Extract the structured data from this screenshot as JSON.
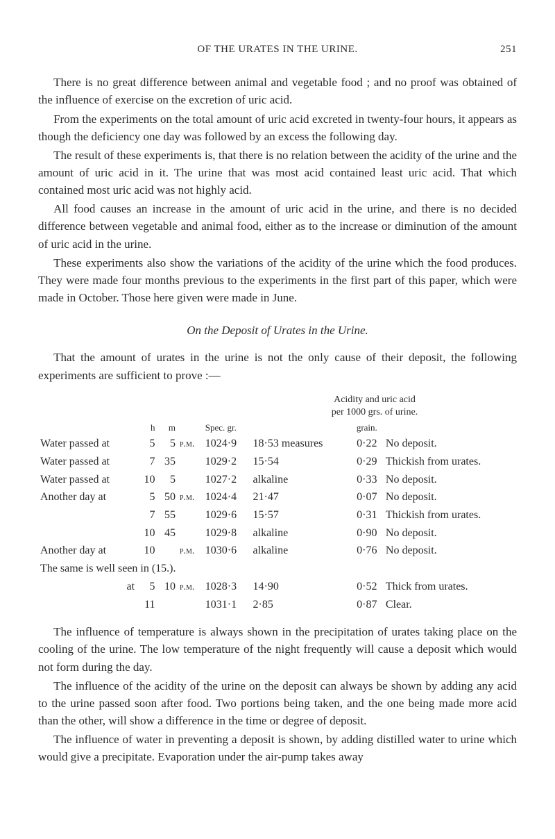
{
  "header": {
    "running_title": "OF THE URATES IN THE URINE.",
    "page_number": "251"
  },
  "paragraphs": {
    "p1": "There is no great difference between animal and vegetable food ; and no proof was obtained of the influence of exercise on the excretion of uric acid.",
    "p2": "From the experiments on the total amount of uric acid excreted in twenty-four hours, it appears as though the deficiency one day was followed by an excess the following day.",
    "p3": "The result of these experiments is, that there is no relation between the acidity of the urine and the amount of uric acid in it. The urine that was most acid contained least uric acid. That which contained most uric acid was not highly acid.",
    "p4": "All food causes an increase in the amount of uric acid in the urine, and there is no decided difference between vegetable and animal food, either as to the increase or diminution of the amount of uric acid in the urine.",
    "p5": "These experiments also show the variations of the acidity of the urine which the food produces. They were made four months previous to the experiments in the first part of this paper, which were made in October. Those here given were made in June.",
    "section_title": "On the Deposit of Urates in the Urine.",
    "p6": "That the amount of urates in the urine is not the only cause of their deposit, the following experiments are sufficient to prove :—",
    "p7": "The influence of temperature is always shown in the precipitation of urates taking place on the cooling of the urine. The low temperature of the night frequently will cause a deposit which would not form during the day.",
    "p8": "The influence of the acidity of the urine on the deposit can always be shown by adding any acid to the urine passed soon after food. Two portions being taken, and the one being made more acid than the other, will show a difference in the time or degree of deposit.",
    "p9": "The influence of water in preventing a deposit is shown, by adding distilled water to urine which would give a precipitate. Evaporation under the air-pump takes away"
  },
  "table": {
    "caption_line1": "Acidity and uric acid",
    "caption_line2": "per 1000 grs. of urine.",
    "col_h": "h",
    "col_m": "m",
    "col_spec": "Spec. gr.",
    "col_grain": "grain.",
    "rows": [
      {
        "desc": "Water passed at",
        "h": "5",
        "m": "5",
        "ampm": "p.m.",
        "sg": "1024·9",
        "meas": "18·53 measures",
        "acid": "0·22",
        "note": "No deposit."
      },
      {
        "desc": "Water passed at",
        "h": "7",
        "m": "35",
        "ampm": "",
        "sg": "1029·2",
        "meas": "15·54",
        "acid": "0·29",
        "note": "Thickish from urates."
      },
      {
        "desc": "Water passed at",
        "h": "10",
        "m": "5",
        "ampm": "",
        "sg": "1027·2",
        "meas": "alkaline",
        "acid": "0·33",
        "note": "No deposit."
      },
      {
        "desc": "Another day at",
        "h": "5",
        "m": "50",
        "ampm": "p.m.",
        "sg": "1024·4",
        "meas": "21·47",
        "acid": "0·07",
        "note": "No deposit."
      },
      {
        "desc": "",
        "h": "7",
        "m": "55",
        "ampm": "",
        "sg": "1029·6",
        "meas": "15·57",
        "acid": "0·31",
        "note": "Thickish from urates."
      },
      {
        "desc": "",
        "h": "10",
        "m": "45",
        "ampm": "",
        "sg": "1029·8",
        "meas": "alkaline",
        "acid": "0·90",
        "note": "No deposit."
      },
      {
        "desc": "Another day at",
        "h": "10",
        "m": "",
        "ampm": "p.m.",
        "sg": "1030·6",
        "meas": "alkaline",
        "acid": "0·76",
        "note": "No deposit."
      }
    ],
    "same_line": "The same is well seen in (15.).",
    "rows2": [
      {
        "desc": "at",
        "h": "5",
        "m": "10",
        "ampm": "p.m.",
        "sg": "1028·3",
        "meas": "14·90",
        "acid": "0·52",
        "note": "Thick from urates."
      },
      {
        "desc": "",
        "h": "11",
        "m": "",
        "ampm": "",
        "sg": "1031·1",
        "meas": "2·85",
        "acid": "0·87",
        "note": "Clear."
      }
    ]
  }
}
